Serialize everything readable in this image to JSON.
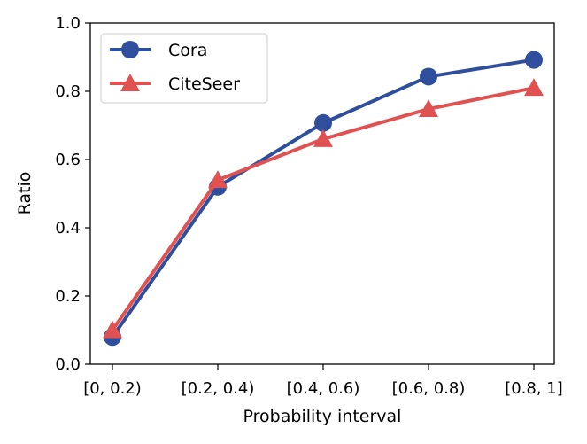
{
  "chart_data": {
    "type": "line",
    "title": "",
    "xlabel": "Probability interval",
    "ylabel": "Ratio",
    "categories": [
      "[0, 0.2)",
      "[0.2, 0.4)",
      "[0.4, 0.6)",
      "[0.6, 0.8)",
      "[0.8, 1]"
    ],
    "ylim": [
      0.0,
      1.0
    ],
    "yticks": [
      "0.0",
      "0.2",
      "0.4",
      "0.6",
      "0.8",
      "1.0"
    ],
    "grid": false,
    "legend_position": "top-left",
    "series": [
      {
        "name": "Cora",
        "marker": "circle",
        "color": "#2f4f9c",
        "values": [
          0.08,
          0.52,
          0.707,
          0.843,
          0.892
        ]
      },
      {
        "name": "CiteSeer",
        "marker": "triangle",
        "color": "#e05252",
        "values": [
          0.1,
          0.54,
          0.66,
          0.748,
          0.81
        ]
      }
    ]
  }
}
